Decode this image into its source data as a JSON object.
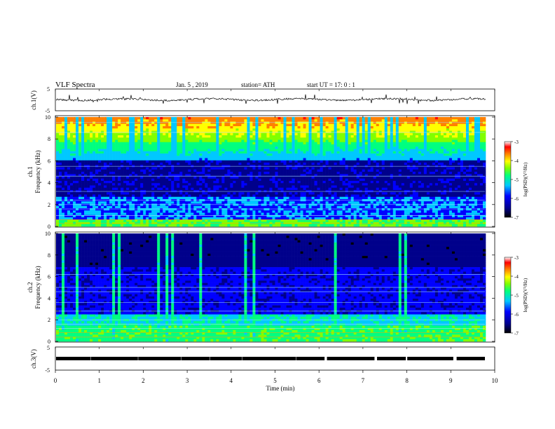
{
  "header": {
    "title": "VLF  Spectra",
    "date": "Jan.  5   , 2019",
    "station": "station= ATH",
    "start": "start  UT  =    17: 0   : 1"
  },
  "chart_data": [
    {
      "type": "line",
      "name": "ch1-waveform",
      "ylabel": "ch.1(V)",
      "ylim": [
        -5,
        5
      ],
      "yticks": [
        "5",
        "-5"
      ],
      "color": "#000000"
    },
    {
      "type": "heatmap",
      "name": "ch1-spectrogram",
      "ylabel": "Frequency (kHz)",
      "channel_label": "ch.1",
      "ylim": [
        0,
        10
      ],
      "yticks": [
        "0",
        "2",
        "4",
        "6",
        "8",
        "10"
      ],
      "colorbar": {
        "label": "log(PSD)(V²/Hz)",
        "range": [
          -7,
          -3
        ],
        "ticks": [
          "-3",
          "-4",
          "-5",
          "-6",
          "-7"
        ]
      }
    },
    {
      "type": "heatmap",
      "name": "ch2-spectrogram",
      "ylabel": "Frequency (kHz)",
      "channel_label": "ch.2",
      "ylim": [
        0,
        10
      ],
      "yticks": [
        "0",
        "2",
        "4",
        "6",
        "8",
        "10"
      ],
      "colorbar": {
        "label": "log(PSD)(V²/Hz)",
        "range": [
          -7,
          -3
        ],
        "ticks": [
          "-3",
          "-4",
          "-5",
          "-6",
          "-7"
        ]
      }
    },
    {
      "type": "line",
      "name": "ch3-waveform",
      "ylabel": "ch.3(V)",
      "ylim": [
        -5,
        5
      ],
      "yticks": [
        "5",
        "-5"
      ],
      "color": "#000000"
    }
  ],
  "xaxis": {
    "label": "Time  (min)",
    "range": [
      0,
      10
    ],
    "ticks": [
      "0",
      "1",
      "2",
      "3",
      "4",
      "5",
      "6",
      "7",
      "8",
      "9",
      "10"
    ]
  },
  "colors": {
    "colormap": [
      "#000000",
      "#00008b",
      "#0000ff",
      "#00c8ff",
      "#00ff80",
      "#80ff00",
      "#ffff00",
      "#ff8000",
      "#ff0000",
      "#ffffff"
    ]
  }
}
